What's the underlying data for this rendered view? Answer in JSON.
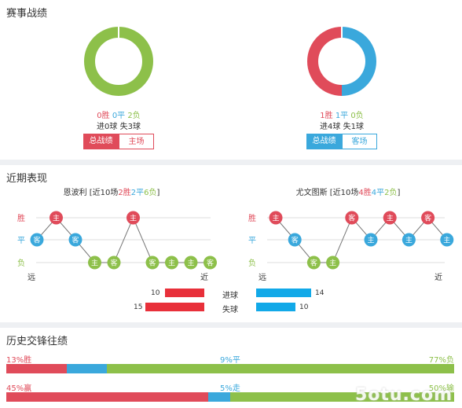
{
  "record": {
    "title": "赛事战绩",
    "home": {
      "win": "0胜",
      "draw": "0平",
      "lose": "2负",
      "goals": "进0球 失3球",
      "donut": [
        {
          "color": "#8dc04a",
          "value": 1.0
        }
      ],
      "tab_active": "总战绩",
      "tab_other": "主场",
      "accent": "#e04b5a"
    },
    "away": {
      "win": "1胜",
      "draw": "1平",
      "lose": "0负",
      "goals": "进4球 失1球",
      "donut": [
        {
          "color": "#3aa8dc",
          "value": 0.5
        },
        {
          "color": "#e04b5a",
          "value": 0.5
        }
      ],
      "tab_active": "总战绩",
      "tab_other": "客场",
      "accent": "#3aa8dc"
    }
  },
  "recent": {
    "title": "近期表现",
    "labels": {
      "win": "胜",
      "draw": "平",
      "lose": "负",
      "far": "远",
      "near": "近"
    },
    "home": {
      "name": "恩波利 [近10场",
      "w": "2胜",
      "d": "2平",
      "l": "6负",
      "end": "]",
      "games": [
        {
          "r": "D",
          "v": "客"
        },
        {
          "r": "W",
          "v": "主"
        },
        {
          "r": "D",
          "v": "客"
        },
        {
          "r": "L",
          "v": "主"
        },
        {
          "r": "L",
          "v": "客"
        },
        {
          "r": "W",
          "v": "主"
        },
        {
          "r": "L",
          "v": "客"
        },
        {
          "r": "L",
          "v": "主"
        },
        {
          "r": "L",
          "v": "主"
        },
        {
          "r": "L",
          "v": "客"
        }
      ]
    },
    "away": {
      "name": "尤文图斯 [近10场",
      "w": "4胜",
      "d": "4平",
      "l": "2负",
      "end": "]",
      "games": [
        {
          "r": "W",
          "v": "主"
        },
        {
          "r": "D",
          "v": "客"
        },
        {
          "r": "L",
          "v": "客"
        },
        {
          "r": "L",
          "v": "主"
        },
        {
          "r": "W",
          "v": "客"
        },
        {
          "r": "D",
          "v": "主"
        },
        {
          "r": "W",
          "v": "主"
        },
        {
          "r": "D",
          "v": "主"
        },
        {
          "r": "W",
          "v": "客"
        },
        {
          "r": "D",
          "v": "主"
        }
      ]
    },
    "goals": {
      "scored_label": "进球",
      "conceded_label": "失球",
      "home_scored": 10,
      "home_conceded": 15,
      "away_scored": 14,
      "away_conceded": 10,
      "max": 15
    }
  },
  "history": {
    "title": "历史交锋往绩",
    "row1": {
      "left": "13%胜",
      "mid": "9%平",
      "right": "77%负",
      "segs": [
        0.135,
        0.09,
        0.775
      ]
    },
    "row2": {
      "left": "45%赢",
      "mid": "5%走",
      "right": "50%输",
      "segs": [
        0.45,
        0.05,
        0.5
      ]
    }
  },
  "colors": {
    "win": "#e04b5a",
    "draw": "#3aa8dc",
    "lose": "#8dc04a",
    "goalbar_home": "#e8303a",
    "goalbar_away": "#12a9e8"
  },
  "watermark": "5otu.com"
}
